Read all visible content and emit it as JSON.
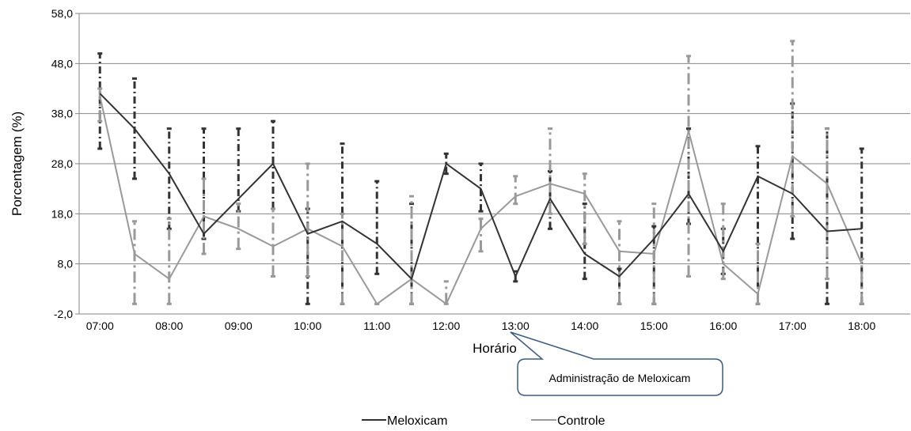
{
  "chart_data": {
    "type": "line",
    "ylabel": "Porcentagem (%)",
    "xlabel": "Horário",
    "ylim": [
      -2,
      58
    ],
    "yticks": [
      "-2,0",
      "8,0",
      "18,0",
      "28,0",
      "38,0",
      "48,0",
      "58,0"
    ],
    "x_labels": [
      "07:00",
      "08:00",
      "09:00",
      "10:00",
      "11:00",
      "12:00",
      "13:00",
      "14:00",
      "15:00",
      "16:00",
      "17:00",
      "18:00"
    ],
    "x": [
      "07:00",
      "07:30",
      "08:00",
      "08:30",
      "09:00",
      "09:30",
      "10:00",
      "10:30",
      "11:00",
      "11:30",
      "12:00",
      "12:30",
      "13:00",
      "13:30",
      "14:00",
      "14:30",
      "15:00",
      "15:30",
      "16:00",
      "16:30",
      "17:00",
      "17:30",
      "18:00"
    ],
    "grid": "horizontal",
    "legend": "bottom",
    "series": [
      {
        "name": "Meloxicam",
        "color": "#333333",
        "values": [
          42.0,
          35.0,
          26.0,
          14.0,
          21.0,
          28.0,
          14.0,
          16.5,
          12.0,
          5.0,
          28.0,
          23.0,
          5.5,
          21.0,
          10.0,
          5.5,
          13.0,
          22.0,
          10.5,
          25.5,
          22.0,
          14.5,
          15.0
        ],
        "err_low": [
          31.0,
          25.0,
          15.0,
          13.0,
          18.5,
          19.0,
          0.0,
          0.0,
          6.0,
          0.0,
          26.0,
          18.5,
          4.5,
          15.0,
          5.0,
          0.0,
          0.0,
          16.0,
          6.0,
          0.0,
          13.0,
          0.0,
          0.0
        ],
        "err_high": [
          50.0,
          45.0,
          35.0,
          35.0,
          35.0,
          36.5,
          19.0,
          32.0,
          24.5,
          20.0,
          30.0,
          28.0,
          6.5,
          26.5,
          20.0,
          7.0,
          15.5,
          35.0,
          15.0,
          31.5,
          40.0,
          35.0,
          31.0
        ]
      },
      {
        "name": "Controle",
        "color": "#999999",
        "values": [
          41.5,
          10.0,
          5.0,
          17.5,
          15.0,
          11.5,
          15.0,
          11.5,
          0.0,
          5.0,
          0.0,
          15.0,
          21.5,
          24.0,
          22.0,
          10.5,
          10.0,
          34.5,
          8.0,
          2.0,
          29.5,
          24.0,
          8.0
        ],
        "err_low": [
          36.5,
          0.0,
          0.0,
          10.0,
          11.0,
          5.5,
          5.5,
          0.0,
          0.0,
          0.0,
          0.0,
          10.5,
          20.0,
          18.0,
          12.0,
          0.0,
          0.0,
          5.5,
          5.0,
          0.0,
          17.5,
          5.0,
          0.0
        ],
        "err_high": [
          43.0,
          16.5,
          17.0,
          25.0,
          20.0,
          19.0,
          28.0,
          18.0,
          0.0,
          21.5,
          4.5,
          17.0,
          25.5,
          35.0,
          26.0,
          16.5,
          20.0,
          49.5,
          20.0,
          12.0,
          52.5,
          35.0,
          9.0
        ]
      }
    ],
    "annotation": {
      "text": "Administração de Meloxicam",
      "points_to": "12:30"
    }
  }
}
